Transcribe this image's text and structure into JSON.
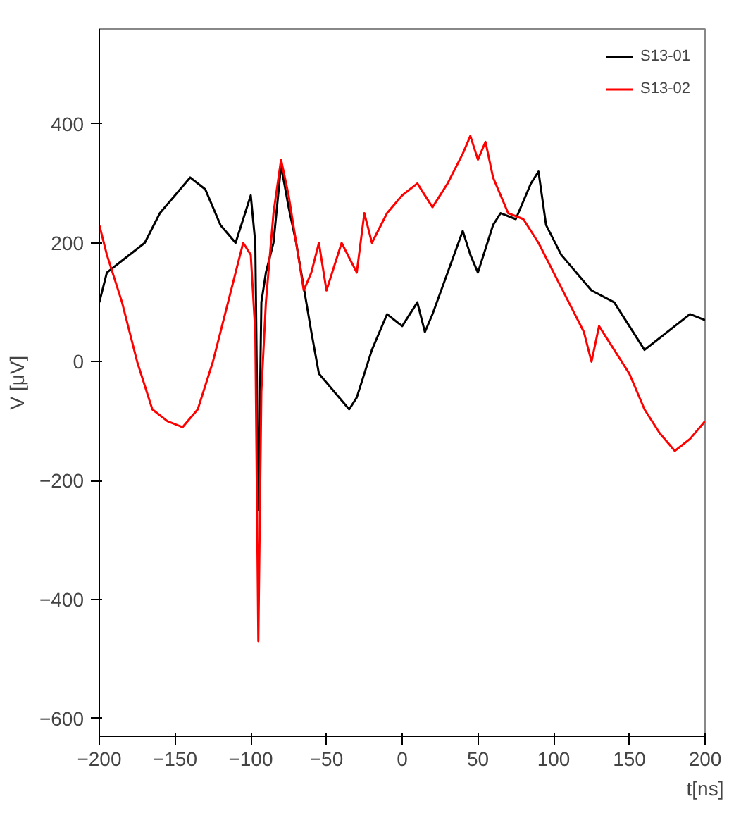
{
  "chart_data": {
    "type": "line",
    "xlabel": "t[ns]",
    "ylabel": "V [μV]",
    "xlim": [
      -200,
      200
    ],
    "ylim": [
      -630,
      560
    ],
    "xticks": [
      -200,
      -150,
      -100,
      -50,
      0,
      50,
      100,
      150,
      200
    ],
    "yticks": [
      -600,
      -400,
      -200,
      0,
      200,
      400
    ],
    "grid": false,
    "legend": "top right",
    "marker": "none",
    "line_style": "solid",
    "series": [
      {
        "name": "S13-01",
        "color": "#000000",
        "x": [
          -200,
          -195,
          -185,
          -170,
          -160,
          -150,
          -140,
          -130,
          -120,
          -110,
          -100,
          -97,
          -95,
          -93,
          -90,
          -85,
          -80,
          -75,
          -70,
          -60,
          -55,
          -45,
          -35,
          -30,
          -20,
          -10,
          0,
          10,
          15,
          20,
          30,
          40,
          45,
          50,
          60,
          65,
          75,
          85,
          90,
          95,
          105,
          115,
          125,
          140,
          150,
          160,
          170,
          180,
          190,
          200
        ],
        "values": [
          100,
          150,
          170,
          200,
          250,
          280,
          310,
          290,
          230,
          200,
          280,
          200,
          -250,
          100,
          150,
          200,
          330,
          260,
          200,
          50,
          -20,
          -50,
          -80,
          -60,
          20,
          80,
          60,
          100,
          50,
          80,
          150,
          220,
          180,
          150,
          230,
          250,
          240,
          300,
          320,
          230,
          180,
          150,
          120,
          100,
          60,
          20,
          40,
          60,
          80,
          70
        ]
      },
      {
        "name": "S13-02",
        "color": "#ff0000",
        "x": [
          -200,
          -195,
          -185,
          -175,
          -165,
          -155,
          -145,
          -135,
          -125,
          -115,
          -105,
          -100,
          -97,
          -95,
          -93,
          -90,
          -85,
          -80,
          -75,
          -70,
          -65,
          -60,
          -55,
          -50,
          -40,
          -30,
          -25,
          -20,
          -10,
          0,
          10,
          20,
          30,
          40,
          45,
          50,
          55,
          60,
          70,
          80,
          90,
          100,
          110,
          120,
          125,
          130,
          140,
          150,
          160,
          170,
          180,
          190,
          200
        ],
        "values": [
          230,
          180,
          100,
          0,
          -80,
          -100,
          -110,
          -80,
          0,
          100,
          200,
          180,
          50,
          -470,
          -50,
          100,
          250,
          340,
          280,
          200,
          120,
          150,
          200,
          120,
          200,
          150,
          250,
          200,
          250,
          280,
          300,
          260,
          300,
          350,
          380,
          340,
          370,
          310,
          250,
          240,
          200,
          150,
          100,
          50,
          0,
          60,
          20,
          -20,
          -80,
          -120,
          -150,
          -130,
          -100
        ]
      }
    ]
  }
}
